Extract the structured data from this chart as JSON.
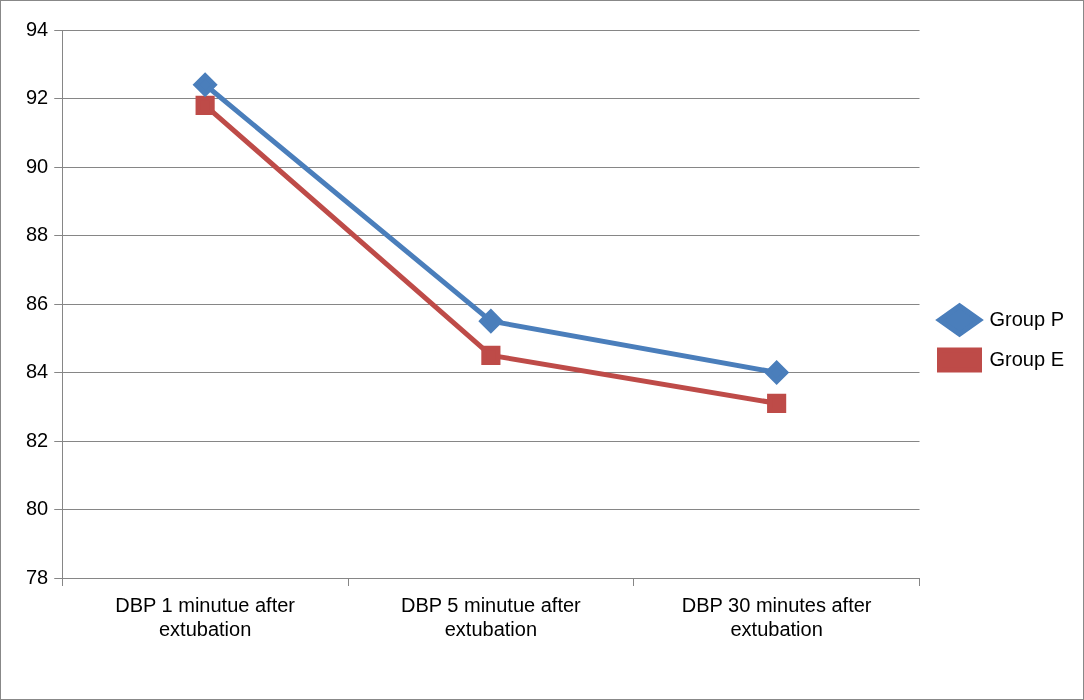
{
  "chart_data": {
    "type": "line",
    "categories": [
      "DBP 1 minutue after extubation",
      "DBP 5 minutue after extubation",
      "DBP 30 minutes after extubation"
    ],
    "series": [
      {
        "name": "Group P",
        "color": "#4a7ebb",
        "values": [
          92.4,
          85.5,
          84.0
        ],
        "marker": "diamond"
      },
      {
        "name": "Group E",
        "color": "#be4b48",
        "values": [
          91.8,
          84.5,
          83.1
        ],
        "marker": "square"
      }
    ],
    "ylim": [
      78,
      94
    ],
    "yticks": [
      78,
      80,
      82,
      84,
      86,
      88,
      90,
      92,
      94
    ],
    "grid": "y",
    "legend": "right",
    "line_style": "solid"
  }
}
